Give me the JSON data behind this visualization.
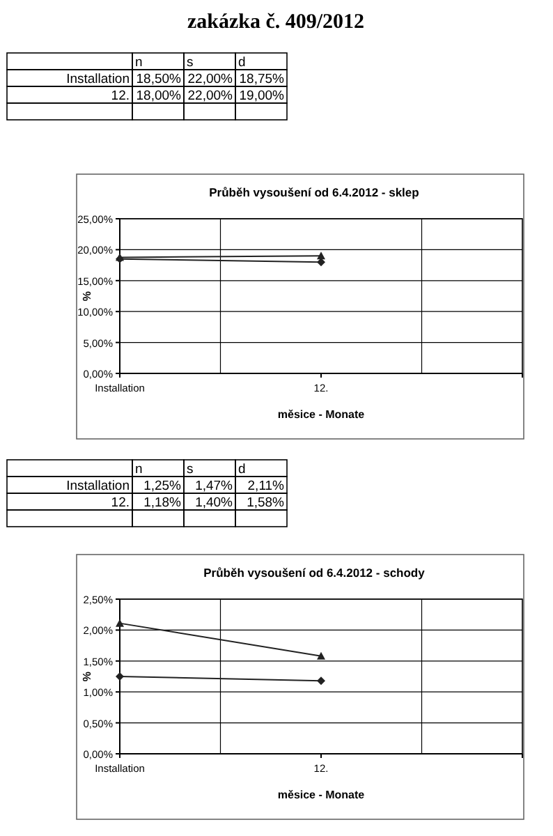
{
  "chart_data": [
    {
      "type": "other",
      "title": "zakázka č. 409/2012",
      "categories": [
        "Installation",
        "12.",
        null
      ],
      "series": [
        {
          "name": "n",
          "values": [
            18.5,
            18,
            null
          ],
          "value_labels": [
            "18,50%",
            "18,00%",
            null
          ]
        },
        {
          "name": "s",
          "values": [
            22,
            22,
            null
          ],
          "value_labels": [
            "22,00%",
            "22,00%",
            null
          ]
        },
        {
          "name": "d",
          "values": [
            18.75,
            19,
            null
          ],
          "value_labels": [
            "18,75%",
            "19,00%",
            null
          ]
        }
      ]
    },
    {
      "type": "line",
      "title": "Průběh vysoušení od 6.4.2012 - sklep",
      "xlabel": "měsice - Monate",
      "ylabel": "%",
      "categories": [
        "Installation",
        "12.",
        null
      ],
      "series": [
        {
          "color": "#222222",
          "marker": "diamond",
          "values": [
            18.5,
            18,
            null
          ]
        },
        {
          "color": "#222222",
          "marker": "triangle",
          "values": [
            18.75,
            19,
            null
          ]
        }
      ],
      "ylim": [
        0,
        25
      ],
      "yticks": [
        {
          "value": 0,
          "label": "0,00%"
        },
        {
          "value": 5,
          "label": "5,00%"
        },
        {
          "value": 10,
          "label": "10,00%"
        },
        {
          "value": 15,
          "label": "15,00%"
        },
        {
          "value": 20,
          "label": "20,00%"
        },
        {
          "value": 25,
          "label": "25,00%"
        }
      ],
      "grid": true
    },
    {
      "type": "other",
      "categories": [
        "Installation",
        "12.",
        null
      ],
      "series": [
        {
          "name": "n",
          "values": [
            1.25,
            1.18,
            null
          ],
          "value_labels": [
            "1,25%",
            "1,18%",
            null
          ]
        },
        {
          "name": "s",
          "values": [
            1.47,
            1.4,
            null
          ],
          "value_labels": [
            "1,47%",
            "1,40%",
            null
          ]
        },
        {
          "name": "d",
          "values": [
            2.11,
            1.58,
            null
          ],
          "value_labels": [
            "2,11%",
            "1,58%",
            null
          ]
        }
      ]
    },
    {
      "type": "line",
      "title": "Průběh vysoušení od 6.4.2012 - schody",
      "xlabel": "měsice - Monate",
      "ylabel": "%",
      "categories": [
        "Installation",
        "12.",
        null
      ],
      "series": [
        {
          "color": "#222222",
          "marker": "diamond",
          "values": [
            1.25,
            1.18,
            null
          ]
        },
        {
          "color": "#222222",
          "marker": "triangle",
          "values": [
            2.11,
            1.58,
            null
          ]
        }
      ],
      "ylim": [
        0,
        2.5
      ],
      "yticks": [
        {
          "value": 0,
          "label": "0,00%"
        },
        {
          "value": 0.5,
          "label": "0,50%"
        },
        {
          "value": 1,
          "label": "1,00%"
        },
        {
          "value": 1.5,
          "label": "1,50%"
        },
        {
          "value": 2,
          "label": "2,00%"
        },
        {
          "value": 2.5,
          "label": "2,50%"
        }
      ],
      "grid": true
    }
  ]
}
